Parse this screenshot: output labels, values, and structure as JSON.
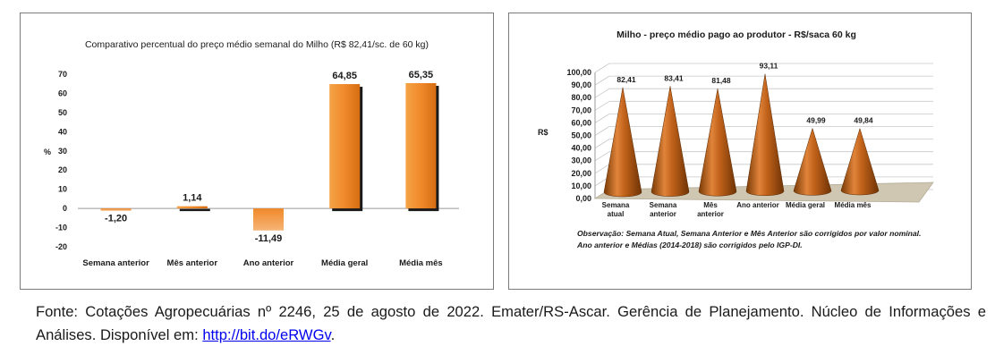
{
  "chart_data": [
    {
      "type": "bar",
      "title": "Comparativo percentual do preço médio semanal do Milho (R$ 82,41/sc. de 60 kg)",
      "ylabel": "%",
      "xlabel": "",
      "ylim": [
        -20,
        70
      ],
      "yticks": [
        "-20",
        "-10",
        "0",
        "10",
        "20",
        "30",
        "40",
        "50",
        "60",
        "70"
      ],
      "ytick_values": [
        -20,
        -10,
        0,
        10,
        20,
        30,
        40,
        50,
        60,
        70
      ],
      "categories": [
        "Semana anterior",
        "Mês anterior",
        "Ano anterior",
        "Média geral",
        "Média mês"
      ],
      "values": [
        -1.2,
        1.14,
        -11.49,
        64.85,
        65.35
      ],
      "value_labels": [
        "-1,20",
        "1,14",
        "-11,49",
        "64,85",
        "65,35"
      ],
      "grid": false,
      "legend": "none",
      "bar_color": "#f08a2a"
    },
    {
      "type": "bar",
      "title": "Milho - preço médio pago ao produtor - R$/saca 60 kg",
      "ylabel": "R$",
      "xlabel": "",
      "ylim": [
        0,
        100
      ],
      "yticks": [
        "0,00",
        "10,00",
        "20,00",
        "30,00",
        "40,00",
        "50,00",
        "60,00",
        "70,00",
        "80,00",
        "90,00",
        "100,00"
      ],
      "ytick_values": [
        0,
        10,
        20,
        30,
        40,
        50,
        60,
        70,
        80,
        90,
        100
      ],
      "categories": [
        [
          "Semana",
          "atual"
        ],
        [
          "Semana",
          "anterior"
        ],
        [
          "Mês",
          "anterior"
        ],
        [
          "Ano anterior"
        ],
        [
          "Média geral"
        ],
        [
          "Média mês"
        ]
      ],
      "values": [
        82.41,
        83.41,
        81.48,
        93.11,
        49.99,
        49.84
      ],
      "value_labels": [
        "82,41",
        "83,41",
        "81,48",
        "93,11",
        "49,99",
        "49,84"
      ],
      "shape": "cone",
      "grid": true,
      "legend": "none",
      "bar_color": "#b85a10"
    }
  ],
  "note": "Observação: Semana Atual, Semana Anterior e Mês Anterior são corrigidos por valor nominal. Ano anterior e Médias (2014-2018) são corrigidos pelo IGP-DI.",
  "source": {
    "text": "Fonte: Cotações Agropecuárias nº 2246, 25 de agosto de 2022. Emater/RS-Ascar. Gerência de Planejamento. Núcleo de Informações e Análises. Disponível em: ",
    "link": "http://bit.do/eRWGv",
    "end": "."
  }
}
